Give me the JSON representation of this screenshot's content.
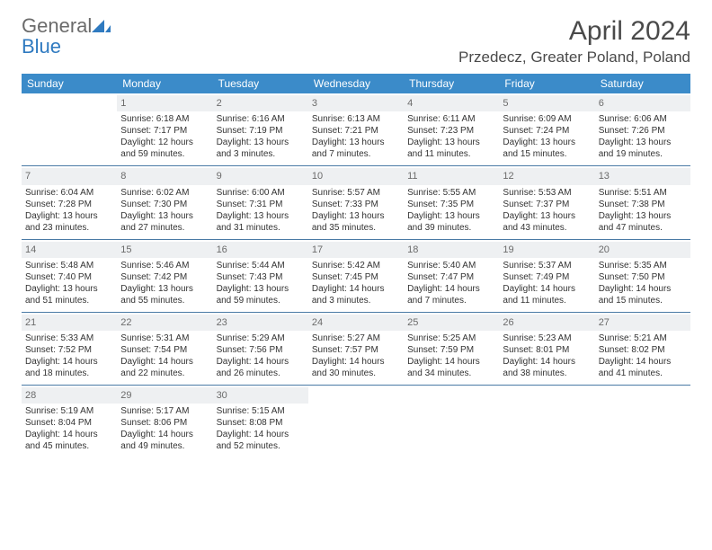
{
  "logo": {
    "text_general": "General",
    "text_blue": "Blue",
    "accent_color": "#2f7ac0",
    "gray_color": "#6b6b6b"
  },
  "header": {
    "month_title": "April 2024",
    "location": "Przedecz, Greater Poland, Poland"
  },
  "styling": {
    "header_bg": "#3b8bc9",
    "header_text": "#ffffff",
    "daynum_bg": "#eef0f2",
    "daynum_text": "#6b6b6b",
    "row_border": "#4a7aa5",
    "body_text": "#333333",
    "page_bg": "#ffffff"
  },
  "weekdays": [
    "Sunday",
    "Monday",
    "Tuesday",
    "Wednesday",
    "Thursday",
    "Friday",
    "Saturday"
  ],
  "weeks": [
    [
      {
        "num": "",
        "sunrise": "",
        "sunset": "",
        "daylight": ""
      },
      {
        "num": "1",
        "sunrise": "Sunrise: 6:18 AM",
        "sunset": "Sunset: 7:17 PM",
        "daylight": "Daylight: 12 hours and 59 minutes."
      },
      {
        "num": "2",
        "sunrise": "Sunrise: 6:16 AM",
        "sunset": "Sunset: 7:19 PM",
        "daylight": "Daylight: 13 hours and 3 minutes."
      },
      {
        "num": "3",
        "sunrise": "Sunrise: 6:13 AM",
        "sunset": "Sunset: 7:21 PM",
        "daylight": "Daylight: 13 hours and 7 minutes."
      },
      {
        "num": "4",
        "sunrise": "Sunrise: 6:11 AM",
        "sunset": "Sunset: 7:23 PM",
        "daylight": "Daylight: 13 hours and 11 minutes."
      },
      {
        "num": "5",
        "sunrise": "Sunrise: 6:09 AM",
        "sunset": "Sunset: 7:24 PM",
        "daylight": "Daylight: 13 hours and 15 minutes."
      },
      {
        "num": "6",
        "sunrise": "Sunrise: 6:06 AM",
        "sunset": "Sunset: 7:26 PM",
        "daylight": "Daylight: 13 hours and 19 minutes."
      }
    ],
    [
      {
        "num": "7",
        "sunrise": "Sunrise: 6:04 AM",
        "sunset": "Sunset: 7:28 PM",
        "daylight": "Daylight: 13 hours and 23 minutes."
      },
      {
        "num": "8",
        "sunrise": "Sunrise: 6:02 AM",
        "sunset": "Sunset: 7:30 PM",
        "daylight": "Daylight: 13 hours and 27 minutes."
      },
      {
        "num": "9",
        "sunrise": "Sunrise: 6:00 AM",
        "sunset": "Sunset: 7:31 PM",
        "daylight": "Daylight: 13 hours and 31 minutes."
      },
      {
        "num": "10",
        "sunrise": "Sunrise: 5:57 AM",
        "sunset": "Sunset: 7:33 PM",
        "daylight": "Daylight: 13 hours and 35 minutes."
      },
      {
        "num": "11",
        "sunrise": "Sunrise: 5:55 AM",
        "sunset": "Sunset: 7:35 PM",
        "daylight": "Daylight: 13 hours and 39 minutes."
      },
      {
        "num": "12",
        "sunrise": "Sunrise: 5:53 AM",
        "sunset": "Sunset: 7:37 PM",
        "daylight": "Daylight: 13 hours and 43 minutes."
      },
      {
        "num": "13",
        "sunrise": "Sunrise: 5:51 AM",
        "sunset": "Sunset: 7:38 PM",
        "daylight": "Daylight: 13 hours and 47 minutes."
      }
    ],
    [
      {
        "num": "14",
        "sunrise": "Sunrise: 5:48 AM",
        "sunset": "Sunset: 7:40 PM",
        "daylight": "Daylight: 13 hours and 51 minutes."
      },
      {
        "num": "15",
        "sunrise": "Sunrise: 5:46 AM",
        "sunset": "Sunset: 7:42 PM",
        "daylight": "Daylight: 13 hours and 55 minutes."
      },
      {
        "num": "16",
        "sunrise": "Sunrise: 5:44 AM",
        "sunset": "Sunset: 7:43 PM",
        "daylight": "Daylight: 13 hours and 59 minutes."
      },
      {
        "num": "17",
        "sunrise": "Sunrise: 5:42 AM",
        "sunset": "Sunset: 7:45 PM",
        "daylight": "Daylight: 14 hours and 3 minutes."
      },
      {
        "num": "18",
        "sunrise": "Sunrise: 5:40 AM",
        "sunset": "Sunset: 7:47 PM",
        "daylight": "Daylight: 14 hours and 7 minutes."
      },
      {
        "num": "19",
        "sunrise": "Sunrise: 5:37 AM",
        "sunset": "Sunset: 7:49 PM",
        "daylight": "Daylight: 14 hours and 11 minutes."
      },
      {
        "num": "20",
        "sunrise": "Sunrise: 5:35 AM",
        "sunset": "Sunset: 7:50 PM",
        "daylight": "Daylight: 14 hours and 15 minutes."
      }
    ],
    [
      {
        "num": "21",
        "sunrise": "Sunrise: 5:33 AM",
        "sunset": "Sunset: 7:52 PM",
        "daylight": "Daylight: 14 hours and 18 minutes."
      },
      {
        "num": "22",
        "sunrise": "Sunrise: 5:31 AM",
        "sunset": "Sunset: 7:54 PM",
        "daylight": "Daylight: 14 hours and 22 minutes."
      },
      {
        "num": "23",
        "sunrise": "Sunrise: 5:29 AM",
        "sunset": "Sunset: 7:56 PM",
        "daylight": "Daylight: 14 hours and 26 minutes."
      },
      {
        "num": "24",
        "sunrise": "Sunrise: 5:27 AM",
        "sunset": "Sunset: 7:57 PM",
        "daylight": "Daylight: 14 hours and 30 minutes."
      },
      {
        "num": "25",
        "sunrise": "Sunrise: 5:25 AM",
        "sunset": "Sunset: 7:59 PM",
        "daylight": "Daylight: 14 hours and 34 minutes."
      },
      {
        "num": "26",
        "sunrise": "Sunrise: 5:23 AM",
        "sunset": "Sunset: 8:01 PM",
        "daylight": "Daylight: 14 hours and 38 minutes."
      },
      {
        "num": "27",
        "sunrise": "Sunrise: 5:21 AM",
        "sunset": "Sunset: 8:02 PM",
        "daylight": "Daylight: 14 hours and 41 minutes."
      }
    ],
    [
      {
        "num": "28",
        "sunrise": "Sunrise: 5:19 AM",
        "sunset": "Sunset: 8:04 PM",
        "daylight": "Daylight: 14 hours and 45 minutes."
      },
      {
        "num": "29",
        "sunrise": "Sunrise: 5:17 AM",
        "sunset": "Sunset: 8:06 PM",
        "daylight": "Daylight: 14 hours and 49 minutes."
      },
      {
        "num": "30",
        "sunrise": "Sunrise: 5:15 AM",
        "sunset": "Sunset: 8:08 PM",
        "daylight": "Daylight: 14 hours and 52 minutes."
      },
      {
        "num": "",
        "sunrise": "",
        "sunset": "",
        "daylight": ""
      },
      {
        "num": "",
        "sunrise": "",
        "sunset": "",
        "daylight": ""
      },
      {
        "num": "",
        "sunrise": "",
        "sunset": "",
        "daylight": ""
      },
      {
        "num": "",
        "sunrise": "",
        "sunset": "",
        "daylight": ""
      }
    ]
  ]
}
